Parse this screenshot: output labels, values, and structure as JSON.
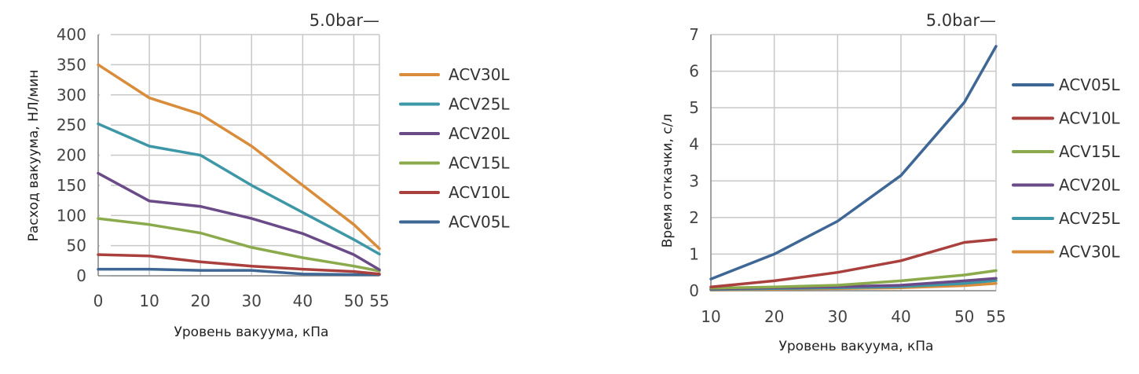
{
  "chart_data": [
    {
      "type": "line",
      "title": "",
      "pressure_label": "5.0bar—",
      "xlabel": "Уровень вакуума, кПа",
      "ylabel": "Расход вакуума, НЛ/мин",
      "x": [
        0,
        10,
        20,
        30,
        40,
        50,
        55
      ],
      "x_ticks": [
        "0",
        "10",
        "20",
        "30",
        "40",
        "50",
        "55"
      ],
      "xlim": [
        0,
        55
      ],
      "ylim": [
        0,
        400
      ],
      "y_ticks": [
        "0",
        "50",
        "100",
        "150",
        "200",
        "250",
        "300",
        "350",
        "400"
      ],
      "grid": true,
      "legend": "right",
      "series": [
        {
          "name": "ACV30L",
          "color": "#d98c3a",
          "values": [
            350,
            295,
            268,
            215,
            150,
            85,
            45
          ]
        },
        {
          "name": "ACV25L",
          "color": "#3d97a6",
          "values": [
            252,
            215,
            200,
            150,
            105,
            60,
            36
          ]
        },
        {
          "name": "ACV20L",
          "color": "#6a4a87",
          "values": [
            170,
            124,
            115,
            95,
            70,
            35,
            10
          ]
        },
        {
          "name": "ACV15L",
          "color": "#8aaa4b",
          "values": [
            95,
            85,
            71,
            47,
            30,
            16,
            8
          ]
        },
        {
          "name": "ACV10L",
          "color": "#a9403e",
          "values": [
            35,
            33,
            23,
            16,
            11,
            7,
            3
          ]
        },
        {
          "name": "ACV05L",
          "color": "#3f6796",
          "values": [
            11,
            11,
            9,
            9,
            3,
            2,
            2
          ]
        }
      ]
    },
    {
      "type": "line",
      "title": "",
      "pressure_label": "5.0bar—",
      "xlabel": "Уровень вакуума, кПа",
      "ylabel": "Время откачки, с/л",
      "x": [
        10,
        20,
        30,
        40,
        50,
        55
      ],
      "x_ticks": [
        "10",
        "20",
        "30",
        "40",
        "50",
        "55"
      ],
      "xlim": [
        10,
        55
      ],
      "ylim": [
        0,
        7
      ],
      "y_ticks": [
        "0",
        "1",
        "2",
        "3",
        "4",
        "5",
        "6",
        "7"
      ],
      "grid": true,
      "legend": "right",
      "series": [
        {
          "name": "ACV05L",
          "color": "#3f6796",
          "values": [
            0.32,
            1.0,
            1.9,
            3.15,
            5.15,
            6.68
          ]
        },
        {
          "name": "ACV10L",
          "color": "#a9403e",
          "values": [
            0.1,
            0.27,
            0.5,
            0.82,
            1.32,
            1.4
          ]
        },
        {
          "name": "ACV15L",
          "color": "#8aaa4b",
          "values": [
            0.07,
            0.1,
            0.15,
            0.27,
            0.43,
            0.55
          ]
        },
        {
          "name": "ACV20L",
          "color": "#6a4a87",
          "values": [
            0.05,
            0.08,
            0.11,
            0.15,
            0.27,
            0.34
          ]
        },
        {
          "name": "ACV25L",
          "color": "#3d97a6",
          "values": [
            0.03,
            0.06,
            0.08,
            0.11,
            0.2,
            0.28
          ]
        },
        {
          "name": "ACV30L",
          "color": "#d98c3a",
          "values": [
            0.02,
            0.04,
            0.06,
            0.08,
            0.14,
            0.2
          ]
        }
      ]
    }
  ]
}
